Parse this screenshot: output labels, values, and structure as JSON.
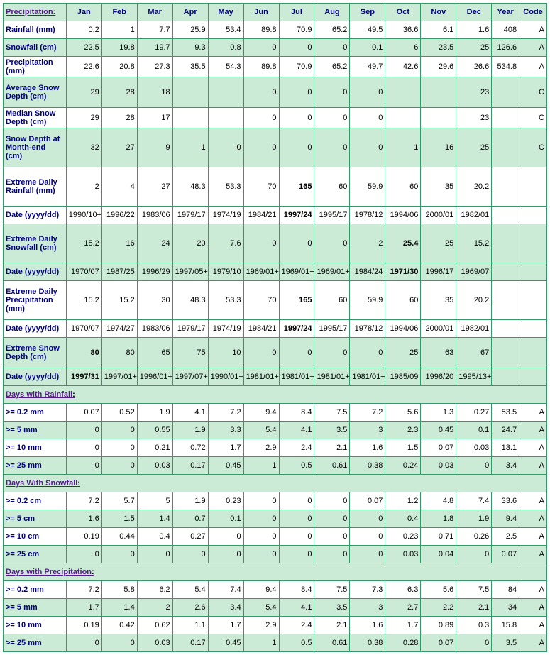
{
  "header": {
    "label": "Precipitation:",
    "months": [
      "Jan",
      "Feb",
      "Mar",
      "Apr",
      "May",
      "Jun",
      "Jul",
      "Aug",
      "Sep",
      "Oct",
      "Nov",
      "Dec"
    ],
    "year": "Year",
    "code": "Code",
    "label_color": "#551a8b",
    "cell_color": "#000080",
    "bg_even": "#ccebd6",
    "bg_odd": "#ffffff",
    "border_color": "#339966"
  },
  "rows": [
    {
      "label": "Rainfall (mm)",
      "cls": "odd",
      "tall": "",
      "vals": [
        "0.2",
        "1",
        "7.7",
        "25.9",
        "53.4",
        "89.8",
        "70.9",
        "65.2",
        "49.5",
        "36.6",
        "6.1",
        "1.6",
        "408",
        "A"
      ],
      "bold": []
    },
    {
      "label": "Snowfall (cm)",
      "cls": "even",
      "tall": "",
      "vals": [
        "22.5",
        "19.8",
        "19.7",
        "9.3",
        "0.8",
        "0",
        "0",
        "0",
        "0.1",
        "6",
        "23.5",
        "25",
        "126.6",
        "A"
      ],
      "bold": []
    },
    {
      "label": "Precipitation (mm)",
      "cls": "odd",
      "tall": "",
      "vals": [
        "22.6",
        "20.8",
        "27.3",
        "35.5",
        "54.3",
        "89.8",
        "70.9",
        "65.2",
        "49.7",
        "42.6",
        "29.6",
        "26.6",
        "534.8",
        "A"
      ],
      "bold": []
    },
    {
      "label": "Average Snow Depth (cm)",
      "cls": "even",
      "tall": "tall",
      "vals": [
        "29",
        "28",
        "18",
        "",
        "",
        "0",
        "0",
        "0",
        "0",
        "",
        "",
        "23",
        "",
        "C"
      ],
      "bold": []
    },
    {
      "label": "Median Snow Depth (cm)",
      "cls": "odd",
      "tall": "",
      "vals": [
        "29",
        "28",
        "17",
        "",
        "",
        "0",
        "0",
        "0",
        "0",
        "",
        "",
        "23",
        "",
        "C"
      ],
      "bold": []
    },
    {
      "label": "Snow Depth at Month-end (cm)",
      "cls": "even",
      "tall": "tall3",
      "vals": [
        "32",
        "27",
        "9",
        "1",
        "0",
        "0",
        "0",
        "0",
        "0",
        "1",
        "16",
        "25",
        "",
        "C"
      ],
      "bold": []
    },
    {
      "label": "Extreme Daily Rainfall (mm)",
      "cls": "odd",
      "tall": "tall3",
      "vals": [
        "2",
        "4",
        "27",
        "48.3",
        "53.3",
        "70",
        "165",
        "60",
        "59.9",
        "60",
        "35",
        "20.2",
        "",
        ""
      ],
      "bold": [
        6
      ]
    },
    {
      "label": "Date (yyyy/dd)",
      "cls": "odd",
      "tall": "",
      "vals": [
        "1990/10+",
        "1996/22",
        "1983/06",
        "1979/17",
        "1974/19",
        "1984/21",
        "1997/24",
        "1995/17",
        "1978/12",
        "1994/06",
        "2000/01",
        "1982/01",
        "",
        ""
      ],
      "bold": [
        6
      ]
    },
    {
      "label": "Extreme Daily Snowfall (cm)",
      "cls": "even",
      "tall": "tall3",
      "vals": [
        "15.2",
        "16",
        "24",
        "20",
        "7.6",
        "0",
        "0",
        "0",
        "2",
        "25.4",
        "25",
        "15.2",
        "",
        ""
      ],
      "bold": [
        9
      ]
    },
    {
      "label": "Date (yyyy/dd)",
      "cls": "even",
      "tall": "",
      "vals": [
        "1970/07",
        "1987/25",
        "1996/29",
        "1997/05+",
        "1979/10",
        "1969/01+",
        "1969/01+",
        "1969/01+",
        "1984/24",
        "1971/30",
        "1996/17",
        "1969/07",
        "",
        ""
      ],
      "bold": [
        9
      ]
    },
    {
      "label": "Extreme Daily Precipitation (mm)",
      "cls": "odd",
      "tall": "tall3",
      "vals": [
        "15.2",
        "15.2",
        "30",
        "48.3",
        "53.3",
        "70",
        "165",
        "60",
        "59.9",
        "60",
        "35",
        "20.2",
        "",
        ""
      ],
      "bold": [
        6
      ]
    },
    {
      "label": "Date (yyyy/dd)",
      "cls": "odd",
      "tall": "",
      "vals": [
        "1970/07",
        "1974/27",
        "1983/06",
        "1979/17",
        "1974/19",
        "1984/21",
        "1997/24",
        "1995/17",
        "1978/12",
        "1994/06",
        "2000/01",
        "1982/01",
        "",
        ""
      ],
      "bold": [
        6
      ]
    },
    {
      "label": "Extreme Snow Depth (cm)",
      "cls": "even",
      "tall": "tall",
      "vals": [
        "80",
        "80",
        "65",
        "75",
        "10",
        "0",
        "0",
        "0",
        "0",
        "25",
        "63",
        "67",
        "",
        ""
      ],
      "bold": [
        0
      ]
    },
    {
      "label": "Date (yyyy/dd)",
      "cls": "even",
      "tall": "",
      "vals": [
        "1997/31",
        "1997/01+",
        "1996/01+",
        "1997/07+",
        "1990/01+",
        "1981/01+",
        "1981/01+",
        "1981/01+",
        "1981/01+",
        "1985/09",
        "1996/20",
        "1995/13+",
        "",
        ""
      ],
      "bold": [
        0
      ]
    }
  ],
  "sections": [
    {
      "title": "Days with Rainfall",
      "rows": [
        {
          "label": ">= 0.2 mm",
          "cls": "odd",
          "vals": [
            "0.07",
            "0.52",
            "1.9",
            "4.1",
            "7.2",
            "9.4",
            "8.4",
            "7.5",
            "7.2",
            "5.6",
            "1.3",
            "0.27",
            "53.5",
            "A"
          ]
        },
        {
          "label": ">= 5 mm",
          "cls": "even",
          "vals": [
            "0",
            "0",
            "0.55",
            "1.9",
            "3.3",
            "5.4",
            "4.1",
            "3.5",
            "3",
            "2.3",
            "0.45",
            "0.1",
            "24.7",
            "A"
          ]
        },
        {
          "label": ">= 10 mm",
          "cls": "odd",
          "vals": [
            "0",
            "0",
            "0.21",
            "0.72",
            "1.7",
            "2.9",
            "2.4",
            "2.1",
            "1.6",
            "1.5",
            "0.07",
            "0.03",
            "13.1",
            "A"
          ]
        },
        {
          "label": ">= 25 mm",
          "cls": "even",
          "vals": [
            "0",
            "0",
            "0.03",
            "0.17",
            "0.45",
            "1",
            "0.5",
            "0.61",
            "0.38",
            "0.24",
            "0.03",
            "0",
            "3.4",
            "A"
          ]
        }
      ]
    },
    {
      "title": "Days With Snowfall",
      "rows": [
        {
          "label": ">= 0.2 cm",
          "cls": "odd",
          "vals": [
            "7.2",
            "5.7",
            "5",
            "1.9",
            "0.23",
            "0",
            "0",
            "0",
            "0.07",
            "1.2",
            "4.8",
            "7.4",
            "33.6",
            "A"
          ]
        },
        {
          "label": ">= 5 cm",
          "cls": "even",
          "vals": [
            "1.6",
            "1.5",
            "1.4",
            "0.7",
            "0.1",
            "0",
            "0",
            "0",
            "0",
            "0.4",
            "1.8",
            "1.9",
            "9.4",
            "A"
          ]
        },
        {
          "label": ">= 10 cm",
          "cls": "odd",
          "vals": [
            "0.19",
            "0.44",
            "0.4",
            "0.27",
            "0",
            "0",
            "0",
            "0",
            "0",
            "0.23",
            "0.71",
            "0.26",
            "2.5",
            "A"
          ]
        },
        {
          "label": ">= 25 cm",
          "cls": "even",
          "vals": [
            "0",
            "0",
            "0",
            "0",
            "0",
            "0",
            "0",
            "0",
            "0",
            "0.03",
            "0.04",
            "0",
            "0.07",
            "A"
          ]
        }
      ]
    },
    {
      "title": "Days with Precipitation",
      "rows": [
        {
          "label": ">= 0.2 mm",
          "cls": "odd",
          "vals": [
            "7.2",
            "5.8",
            "6.2",
            "5.4",
            "7.4",
            "9.4",
            "8.4",
            "7.5",
            "7.3",
            "6.3",
            "5.6",
            "7.5",
            "84",
            "A"
          ]
        },
        {
          "label": ">= 5 mm",
          "cls": "even",
          "vals": [
            "1.7",
            "1.4",
            "2",
            "2.6",
            "3.4",
            "5.4",
            "4.1",
            "3.5",
            "3",
            "2.7",
            "2.2",
            "2.1",
            "34",
            "A"
          ]
        },
        {
          "label": ">= 10 mm",
          "cls": "odd",
          "vals": [
            "0.19",
            "0.42",
            "0.62",
            "1.1",
            "1.7",
            "2.9",
            "2.4",
            "2.1",
            "1.6",
            "1.7",
            "0.89",
            "0.3",
            "15.8",
            "A"
          ]
        },
        {
          "label": ">= 25 mm",
          "cls": "even",
          "vals": [
            "0",
            "0",
            "0.03",
            "0.17",
            "0.45",
            "1",
            "0.5",
            "0.61",
            "0.38",
            "0.28",
            "0.07",
            "0",
            "3.5",
            "A"
          ]
        }
      ]
    }
  ]
}
